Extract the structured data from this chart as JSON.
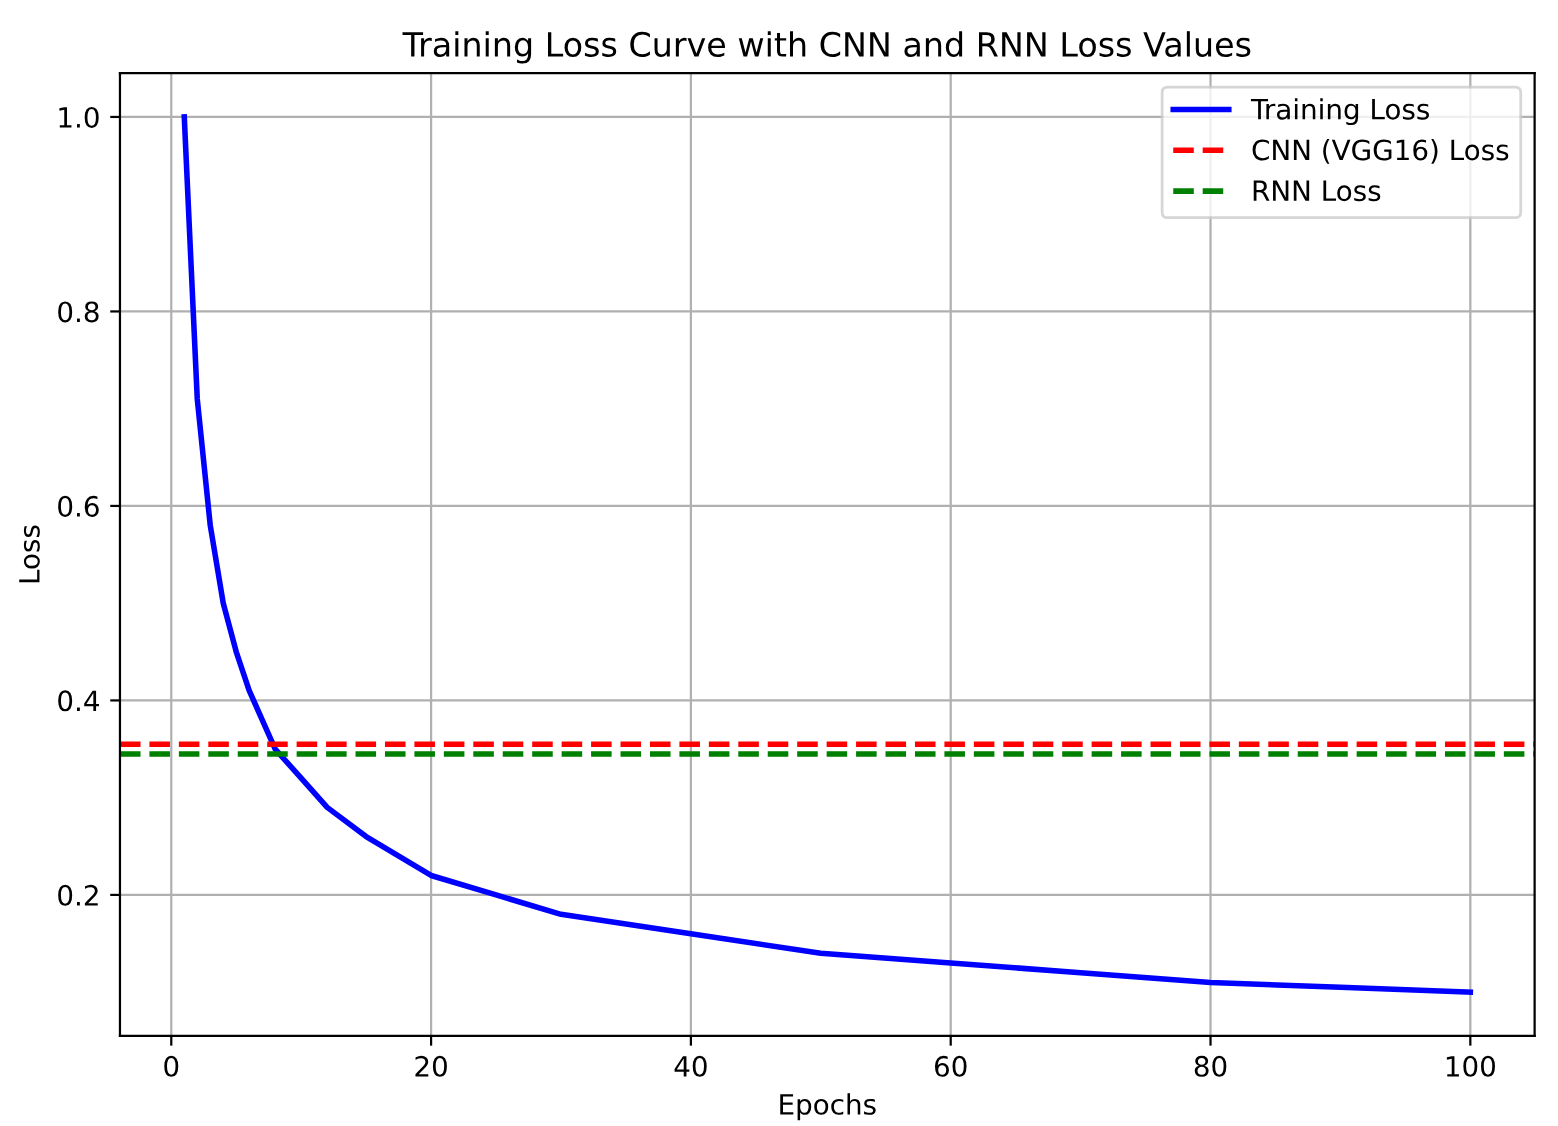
{
  "chart_data": {
    "type": "line",
    "title": "Training Loss Curve with CNN and RNN Loss Values",
    "xlabel": "Epochs",
    "ylabel": "Loss",
    "x": [
      1,
      2,
      3,
      4,
      5,
      6,
      7,
      8,
      10,
      12,
      15,
      20,
      25,
      30,
      40,
      50,
      60,
      70,
      80,
      90,
      100
    ],
    "series": [
      {
        "name": "Training Loss",
        "color": "#0000ff",
        "values": [
          1.0,
          0.71,
          0.58,
          0.5,
          0.45,
          0.41,
          0.38,
          0.35,
          0.32,
          0.29,
          0.26,
          0.22,
          0.2,
          0.18,
          0.16,
          0.14,
          0.13,
          0.12,
          0.11,
          0.105,
          0.1
        ]
      }
    ],
    "ref_lines": [
      {
        "axis": "y",
        "value": 0.355,
        "label": "CNN (VGG16) Loss",
        "color": "#ff0000",
        "line_style": "dashed"
      },
      {
        "axis": "y",
        "value": 0.345,
        "label": "RNN Loss",
        "color": "#008000",
        "line_style": "dashed"
      }
    ],
    "xlim": [
      -3.95,
      104.95
    ],
    "ylim": [
      0.055,
      1.045
    ],
    "xticks": [
      0,
      20,
      40,
      60,
      80,
      100
    ],
    "yticks": [
      0.2,
      0.4,
      0.6,
      0.8,
      {
        "value": 1,
        "label": "1.0"
      }
    ],
    "grid": true,
    "legend": "top right"
  }
}
